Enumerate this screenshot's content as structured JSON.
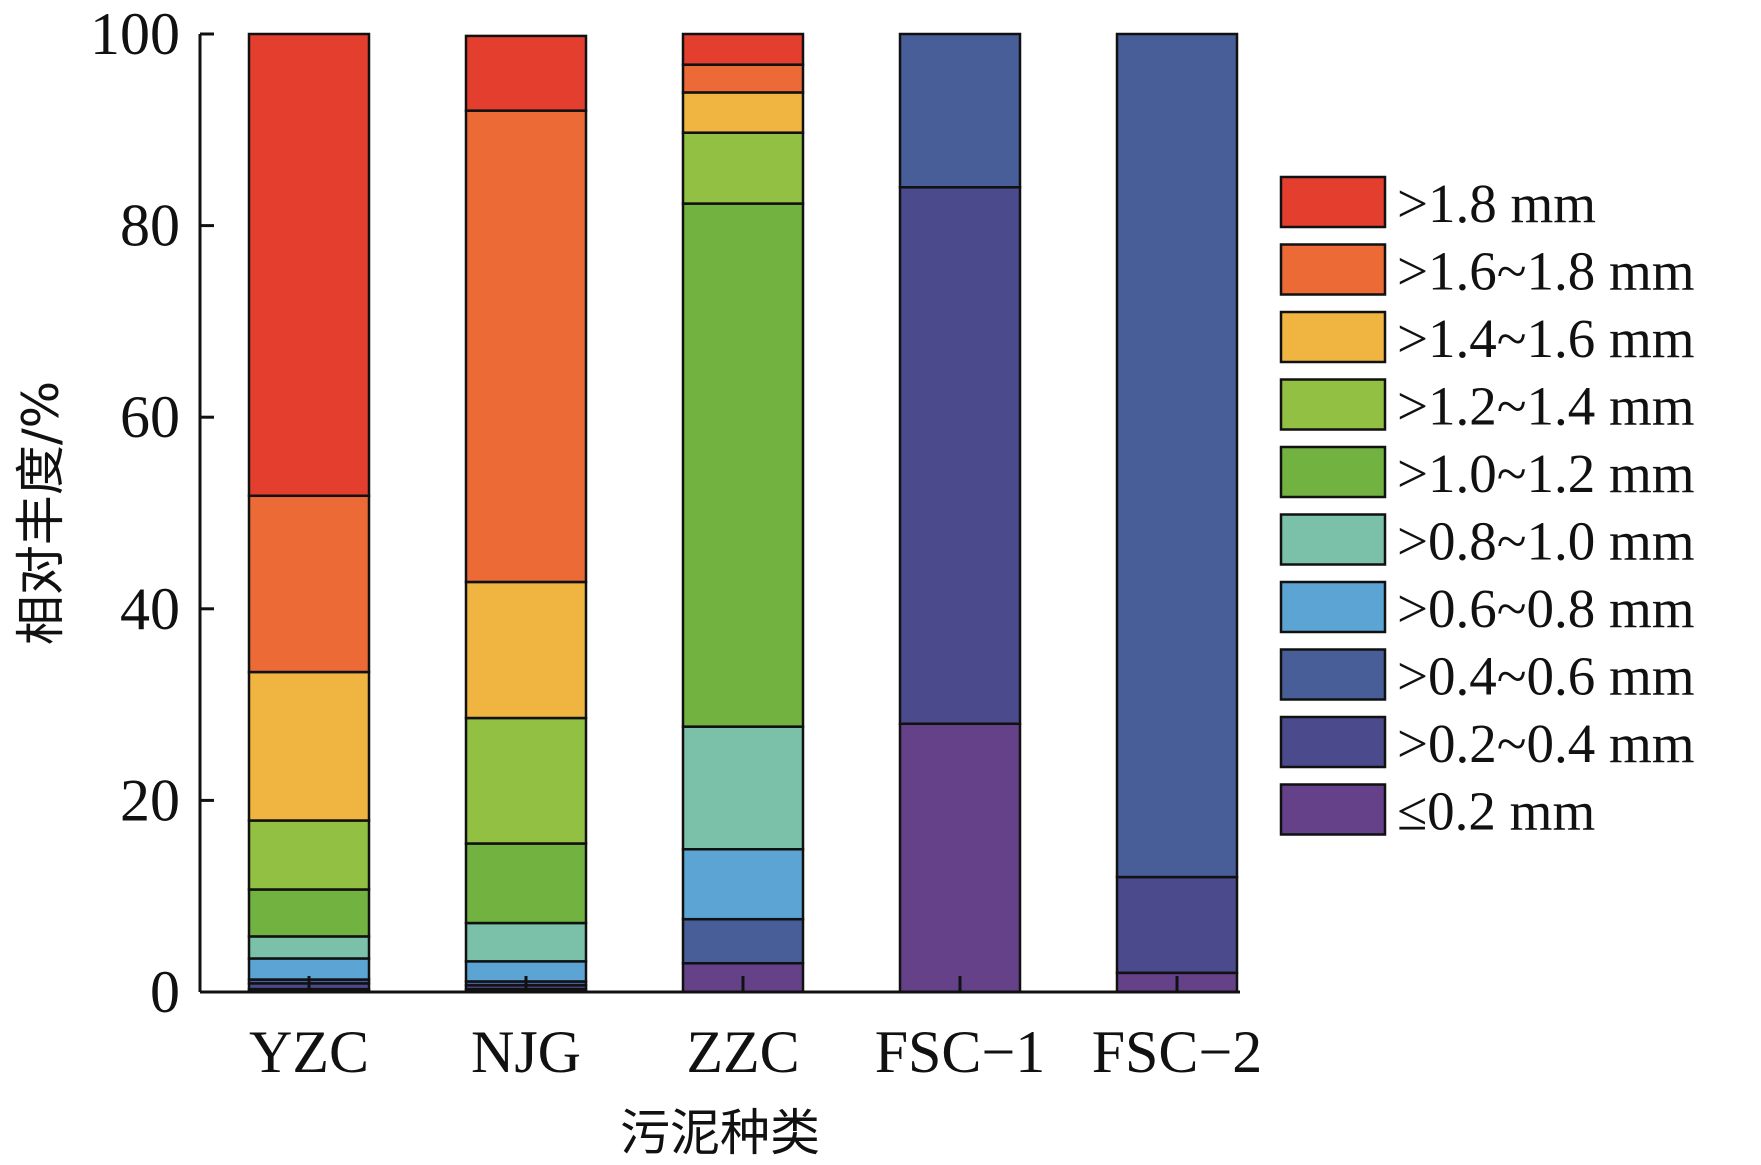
{
  "chart_data": {
    "type": "bar",
    "stacked": true,
    "categories": [
      "YZC",
      "NJG",
      "ZZC",
      "FSC-1",
      "FSC-2"
    ],
    "xlabel": "污泥种类",
    "ylabel": "相对丰度/%",
    "ylim": [
      0,
      100
    ],
    "yticks": [
      0,
      20,
      40,
      60,
      80,
      100
    ],
    "legend_position": "right",
    "series": [
      {
        "name": "≤0.2 mm",
        "color": "#65418A",
        "values": [
          0.3,
          0.3,
          3.0,
          28.0,
          2.0
        ]
      },
      {
        "name": ">0.2~0.4 mm",
        "color": "#4B4A8D",
        "values": [
          0.6,
          0.4,
          0.0,
          56.0,
          10.0
        ]
      },
      {
        "name": ">0.4~0.6 mm",
        "color": "#475E99",
        "values": [
          0.4,
          0.4,
          4.6,
          16.0,
          88.0
        ]
      },
      {
        "name": ">0.6~0.8 mm",
        "color": "#5BA4D4",
        "values": [
          2.2,
          2.1,
          7.3,
          0.0,
          0.0
        ]
      },
      {
        "name": ">0.8~1.0 mm",
        "color": "#7BC1AA",
        "values": [
          2.3,
          4.0,
          12.8,
          0.0,
          0.0
        ]
      },
      {
        "name": ">1.0~1.2 mm",
        "color": "#72B240",
        "values": [
          4.9,
          8.3,
          54.6,
          0.0,
          0.0
        ]
      },
      {
        "name": ">1.2~1.4 mm",
        "color": "#91C043",
        "values": [
          7.2,
          13.1,
          7.4,
          0.0,
          0.0
        ]
      },
      {
        "name": ">1.4~1.6 mm",
        "color": "#F0B541",
        "values": [
          15.5,
          14.2,
          4.2,
          0.0,
          0.0
        ]
      },
      {
        "name": ">1.6~1.8 mm",
        "color": "#EB6A35",
        "values": [
          18.4,
          49.2,
          2.9,
          0.0,
          0.0
        ]
      },
      {
        "name": ">1.8 mm",
        "color": "#E43F2E",
        "values": [
          48.2,
          7.8,
          3.2,
          0.0,
          0.0
        ]
      }
    ],
    "legend_order": [
      ">1.8 mm",
      ">1.6~1.8 mm",
      ">1.4~1.6 mm",
      ">1.2~1.4 mm",
      ">1.0~1.2 mm",
      ">0.8~1.0 mm",
      ">0.6~0.8 mm",
      ">0.4~0.6 mm",
      ">0.2~0.4 mm",
      "≤0.2 mm"
    ]
  }
}
